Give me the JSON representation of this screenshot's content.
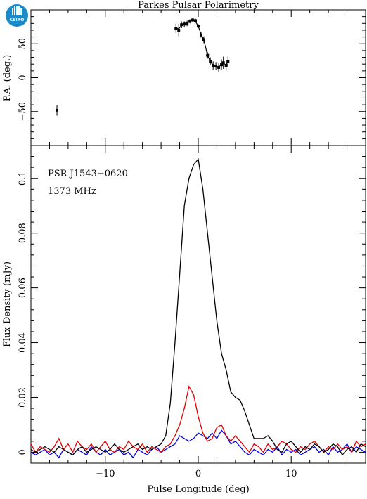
{
  "page": {
    "title": "Parkes Pulsar Polarimetry",
    "logo_text": "CSIRO",
    "colors": {
      "total": "#000000",
      "linear": "#e00000",
      "circular": "#0000e0",
      "logo": "#1a8bc9"
    }
  },
  "chart_data": [
    {
      "type": "scatter",
      "title": "Parkes Pulsar Polarimetry",
      "ylabel": "P.A. (deg.)",
      "xlim": [
        -18,
        18
      ],
      "ylim": [
        -100,
        100
      ],
      "yticks": [
        -50,
        0,
        50
      ],
      "xticks": [
        -10,
        0,
        10
      ],
      "points": [
        {
          "x": -15.2,
          "y": -48,
          "err": 8
        },
        {
          "x": -2.4,
          "y": 73,
          "err": 7
        },
        {
          "x": -2.1,
          "y": 70,
          "err": 9
        },
        {
          "x": -1.8,
          "y": 78,
          "err": 5
        },
        {
          "x": -1.5,
          "y": 79,
          "err": 4
        },
        {
          "x": -1.2,
          "y": 80,
          "err": 4
        },
        {
          "x": -0.9,
          "y": 83,
          "err": 3
        },
        {
          "x": -0.6,
          "y": 85,
          "err": 3
        },
        {
          "x": -0.3,
          "y": 84,
          "err": 3
        },
        {
          "x": 0.0,
          "y": 76,
          "err": 3
        },
        {
          "x": 0.3,
          "y": 63,
          "err": 4
        },
        {
          "x": 0.6,
          "y": 56,
          "err": 5
        },
        {
          "x": 1.0,
          "y": 33,
          "err": 5
        },
        {
          "x": 1.3,
          "y": 24,
          "err": 6
        },
        {
          "x": 1.6,
          "y": 18,
          "err": 6
        },
        {
          "x": 1.9,
          "y": 17,
          "err": 6
        },
        {
          "x": 2.2,
          "y": 15,
          "err": 7
        },
        {
          "x": 2.5,
          "y": 19,
          "err": 8
        },
        {
          "x": 2.7,
          "y": 22,
          "err": 9
        },
        {
          "x": 3.0,
          "y": 18,
          "err": 8
        },
        {
          "x": 3.2,
          "y": 24,
          "err": 7
        }
      ],
      "curve": [
        [
          -2.4,
          73
        ],
        [
          -2.1,
          72
        ],
        [
          -1.8,
          77
        ],
        [
          -1.5,
          79
        ],
        [
          -1.2,
          80
        ],
        [
          -0.9,
          83
        ],
        [
          -0.6,
          85
        ],
        [
          -0.3,
          83
        ],
        [
          0.0,
          76
        ],
        [
          0.3,
          64
        ],
        [
          0.6,
          56
        ],
        [
          1.0,
          33
        ],
        [
          1.3,
          24
        ],
        [
          1.6,
          18
        ],
        [
          1.9,
          16
        ],
        [
          2.2,
          16
        ],
        [
          2.5,
          19
        ],
        [
          2.7,
          21
        ],
        [
          3.0,
          19
        ],
        [
          3.2,
          24
        ]
      ]
    },
    {
      "type": "line",
      "xlabel": "Pulse Longitude (deg)",
      "ylabel": "Flux Density (mJy)",
      "annotations": [
        "PSR J1543−0620",
        "1373 MHz"
      ],
      "xlim": [
        -18,
        18
      ],
      "ylim": [
        -0.004,
        0.112
      ],
      "yticks": [
        0,
        0.02,
        0.04,
        0.06,
        0.08,
        0.1
      ],
      "ytick_labels": [
        "0",
        "0.02",
        "0.04",
        "0.06",
        "0.08",
        "0.1"
      ],
      "xticks": [
        -10,
        0,
        10
      ],
      "xtick_labels": [
        "−10",
        "0",
        "10"
      ],
      "series": [
        {
          "color": "#000000",
          "x": [
            -18.0,
            -17.5,
            -17.0,
            -16.5,
            -16.0,
            -15.5,
            -15.0,
            -14.5,
            -14.0,
            -13.5,
            -13.0,
            -12.5,
            -12.0,
            -11.5,
            -11.0,
            -10.5,
            -10.0,
            -9.5,
            -9.0,
            -8.5,
            -8.0,
            -7.5,
            -7.0,
            -6.5,
            -6.0,
            -5.5,
            -5.0,
            -4.5,
            -4.0,
            -3.5,
            -3.0,
            -2.5,
            -2.0,
            -1.5,
            -1.0,
            -0.5,
            0.0,
            0.5,
            1.0,
            1.5,
            2.0,
            2.5,
            3.0,
            3.5,
            4.0,
            4.5,
            5.0,
            5.5,
            6.0,
            6.5,
            7.0,
            7.5,
            8.0,
            8.5,
            9.0,
            9.5,
            10.0,
            10.5,
            11.0,
            11.5,
            12.0,
            12.5,
            13.0,
            13.5,
            14.0,
            14.5,
            15.0,
            15.5,
            16.0,
            16.5,
            17.0,
            17.5,
            18.0
          ],
          "y": [
            0.001,
            0.0,
            0.001,
            0.002,
            0.001,
            0.0,
            0.002,
            0.001,
            0.0,
            -0.001,
            0.001,
            0.002,
            0.0,
            0.001,
            0.002,
            0.001,
            0.0,
            0.001,
            0.003,
            0.001,
            0.0,
            0.001,
            0.002,
            0.003,
            0.001,
            0.002,
            0.001,
            0.002,
            0.003,
            0.006,
            0.018,
            0.04,
            0.065,
            0.09,
            0.1,
            0.105,
            0.107,
            0.096,
            0.08,
            0.064,
            0.048,
            0.036,
            0.03,
            0.022,
            0.02,
            0.019,
            0.015,
            0.01,
            0.005,
            0.005,
            0.005,
            0.006,
            0.004,
            0.001,
            0.0,
            0.003,
            0.004,
            0.002,
            0.0,
            0.002,
            0.001,
            0.003,
            0.002,
            0.0,
            0.001,
            0.003,
            0.002,
            -0.001,
            0.001,
            0.002,
            0.0,
            0.003,
            0.002
          ]
        },
        {
          "color": "#e00000",
          "x": [
            -18.0,
            -17.5,
            -17.0,
            -16.5,
            -16.0,
            -15.5,
            -15.0,
            -14.5,
            -14.0,
            -13.5,
            -13.0,
            -12.5,
            -12.0,
            -11.5,
            -11.0,
            -10.5,
            -10.0,
            -9.5,
            -9.0,
            -8.5,
            -8.0,
            -7.5,
            -7.0,
            -6.5,
            -6.0,
            -5.5,
            -5.0,
            -4.5,
            -4.0,
            -3.5,
            -3.0,
            -2.5,
            -2.0,
            -1.5,
            -1.0,
            -0.5,
            0.0,
            0.5,
            1.0,
            1.5,
            2.0,
            2.5,
            3.0,
            3.5,
            4.0,
            4.5,
            5.0,
            5.5,
            6.0,
            6.5,
            7.0,
            7.5,
            8.0,
            8.5,
            9.0,
            9.5,
            10.0,
            10.5,
            11.0,
            11.5,
            12.0,
            12.5,
            13.0,
            13.5,
            14.0,
            14.5,
            15.0,
            15.5,
            16.0,
            16.5,
            17.0,
            17.5,
            18.0
          ],
          "y": [
            0.003,
            0.0,
            0.002,
            0.001,
            0.0,
            0.002,
            0.005,
            0.001,
            0.003,
            0.0,
            0.004,
            0.002,
            0.001,
            0.003,
            0.0,
            0.002,
            0.004,
            0.001,
            0.0,
            0.002,
            0.001,
            0.004,
            0.002,
            0.001,
            0.003,
            0.0,
            0.002,
            0.001,
            0.0,
            0.002,
            0.003,
            0.006,
            0.01,
            0.016,
            0.024,
            0.021,
            0.013,
            0.007,
            0.004,
            0.005,
            0.009,
            0.01,
            0.006,
            0.004,
            0.006,
            0.004,
            0.002,
            0.0,
            0.003,
            0.002,
            0.0,
            0.003,
            0.001,
            0.002,
            0.004,
            0.003,
            0.001,
            0.0,
            0.002,
            0.001,
            0.003,
            0.004,
            0.002,
            0.0,
            0.002,
            0.001,
            0.003,
            0.001,
            0.002,
            0.0,
            0.004,
            0.002,
            0.003
          ]
        },
        {
          "color": "#0000e0",
          "x": [
            -18.0,
            -17.5,
            -17.0,
            -16.5,
            -16.0,
            -15.5,
            -15.0,
            -14.5,
            -14.0,
            -13.5,
            -13.0,
            -12.5,
            -12.0,
            -11.5,
            -11.0,
            -10.5,
            -10.0,
            -9.5,
            -9.0,
            -8.5,
            -8.0,
            -7.5,
            -7.0,
            -6.5,
            -6.0,
            -5.5,
            -5.0,
            -4.5,
            -4.0,
            -3.5,
            -3.0,
            -2.5,
            -2.0,
            -1.5,
            -1.0,
            -0.5,
            0.0,
            0.5,
            1.0,
            1.5,
            2.0,
            2.5,
            3.0,
            3.5,
            4.0,
            4.5,
            5.0,
            5.5,
            6.0,
            6.5,
            7.0,
            7.5,
            8.0,
            8.5,
            9.0,
            9.5,
            10.0,
            10.5,
            11.0,
            11.5,
            12.0,
            12.5,
            13.0,
            13.5,
            14.0,
            14.5,
            15.0,
            15.5,
            16.0,
            16.5,
            17.0,
            17.5,
            18.0
          ],
          "y": [
            0.0,
            -0.001,
            0.0,
            0.001,
            -0.001,
            0.0,
            -0.002,
            0.001,
            0.0,
            -0.001,
            0.001,
            0.0,
            -0.001,
            0.002,
            0.0,
            -0.001,
            0.001,
            -0.001,
            0.0,
            0.001,
            -0.001,
            0.0,
            -0.002,
            0.001,
            0.0,
            -0.001,
            0.001,
            0.002,
            0.0,
            0.001,
            0.002,
            0.003,
            0.006,
            0.005,
            0.004,
            0.005,
            0.007,
            0.006,
            0.005,
            0.007,
            0.005,
            0.008,
            0.006,
            0.003,
            0.004,
            0.002,
            0.0,
            -0.001,
            0.001,
            0.0,
            -0.001,
            0.001,
            0.0,
            0.002,
            -0.001,
            0.001,
            0.0,
            0.001,
            -0.001,
            0.0,
            0.001,
            0.002,
            0.0,
            0.001,
            -0.001,
            0.002,
            0.0,
            0.001,
            0.003,
            0.0,
            0.002,
            0.001,
            0.0
          ]
        }
      ]
    }
  ]
}
